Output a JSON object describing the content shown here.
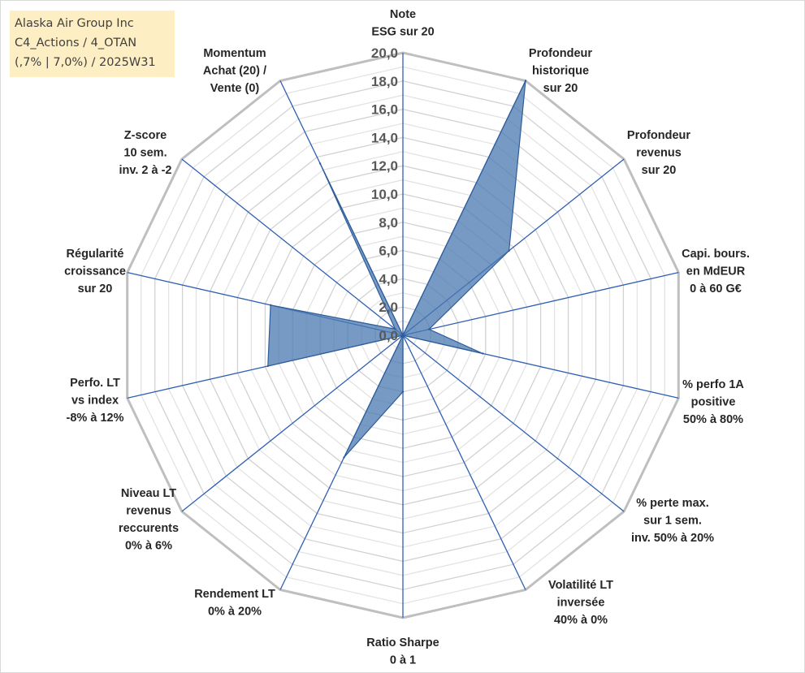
{
  "title_lines": [
    "Alaska Air Group Inc",
    "C4_Actions / 4_OTAN",
    "(,7% | 7,0%) / 2025W31"
  ],
  "chart_data": {
    "type": "radar",
    "rmin": 0,
    "rmax": 20,
    "tick_step": 2,
    "grid_levels": 20,
    "tick_labels": [
      "0,0",
      "2,0",
      "4,0",
      "6,0",
      "8,0",
      "10,0",
      "12,0",
      "14,0",
      "16,0",
      "18,0",
      "20,0"
    ],
    "grid": true,
    "colors": {
      "fill": "#4a78b0",
      "fill_opacity": 0.75,
      "stroke": "#2e5c99",
      "spoke": "#2f5fb3",
      "grid_major": "#bfbfbf",
      "grid_minor": "#e3e3e3"
    },
    "categories": [
      [
        "Note",
        "ESG sur 20"
      ],
      [
        "Profondeur",
        "historique",
        "sur 20"
      ],
      [
        "Profondeur",
        "revenus",
        "sur 20"
      ],
      [
        "Capi. bours.",
        "en MdEUR",
        "0 à 60 G€"
      ],
      [
        "% perfo 1A",
        "positive",
        "50% à 80%"
      ],
      [
        "% perte max.",
        "sur 1 sem.",
        "inv. 50% à 20%"
      ],
      [
        "Volatilité LT",
        "inversée",
        "40% à 0%"
      ],
      [
        "Ratio Sharpe",
        "0 à 1"
      ],
      [
        "Rendement LT",
        "0% à 20%"
      ],
      [
        "Niveau LT",
        "revenus",
        "reccurents",
        "0% à 6%"
      ],
      [
        "Perfo. LT",
        "vs index",
        "-8% à 12%"
      ],
      [
        "Régularité",
        "croissance",
        "sur 20"
      ],
      [
        "Z-score",
        "10 sem.",
        "inv. 2 à -2"
      ],
      [
        "Momentum",
        "Achat (20) /",
        "Vente (0)"
      ]
    ],
    "values": [
      0.0,
      20.0,
      9.6,
      1.9,
      5.8,
      0.0,
      0.0,
      4.0,
      9.6,
      0.0,
      9.8,
      9.6,
      0.7,
      13.5
    ]
  }
}
